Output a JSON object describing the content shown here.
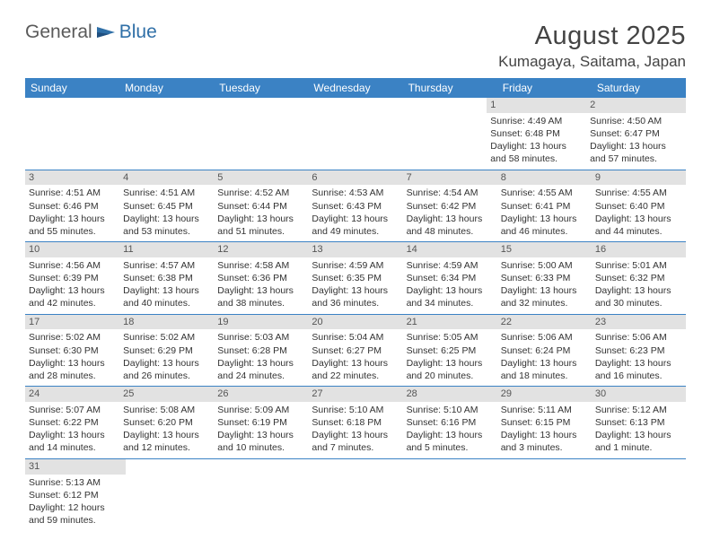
{
  "logo": {
    "text_a": "General",
    "text_b": "Blue"
  },
  "title": "August 2025",
  "location": "Kumagaya, Saitama, Japan",
  "colors": {
    "header_bg": "#3b82c4",
    "header_text": "#ffffff",
    "daynum_bg": "#e2e2e2",
    "daynum_text": "#555555",
    "body_text": "#333333",
    "logo_gray": "#5a5a5a",
    "logo_blue": "#2f6fa7",
    "row_border": "#3b82c4"
  },
  "weekdays": [
    "Sunday",
    "Monday",
    "Tuesday",
    "Wednesday",
    "Thursday",
    "Friday",
    "Saturday"
  ],
  "weeks": [
    [
      null,
      null,
      null,
      null,
      null,
      {
        "n": "1",
        "sr": "Sunrise: 4:49 AM",
        "ss": "Sunset: 6:48 PM",
        "d1": "Daylight: 13 hours",
        "d2": "and 58 minutes."
      },
      {
        "n": "2",
        "sr": "Sunrise: 4:50 AM",
        "ss": "Sunset: 6:47 PM",
        "d1": "Daylight: 13 hours",
        "d2": "and 57 minutes."
      }
    ],
    [
      {
        "n": "3",
        "sr": "Sunrise: 4:51 AM",
        "ss": "Sunset: 6:46 PM",
        "d1": "Daylight: 13 hours",
        "d2": "and 55 minutes."
      },
      {
        "n": "4",
        "sr": "Sunrise: 4:51 AM",
        "ss": "Sunset: 6:45 PM",
        "d1": "Daylight: 13 hours",
        "d2": "and 53 minutes."
      },
      {
        "n": "5",
        "sr": "Sunrise: 4:52 AM",
        "ss": "Sunset: 6:44 PM",
        "d1": "Daylight: 13 hours",
        "d2": "and 51 minutes."
      },
      {
        "n": "6",
        "sr": "Sunrise: 4:53 AM",
        "ss": "Sunset: 6:43 PM",
        "d1": "Daylight: 13 hours",
        "d2": "and 49 minutes."
      },
      {
        "n": "7",
        "sr": "Sunrise: 4:54 AM",
        "ss": "Sunset: 6:42 PM",
        "d1": "Daylight: 13 hours",
        "d2": "and 48 minutes."
      },
      {
        "n": "8",
        "sr": "Sunrise: 4:55 AM",
        "ss": "Sunset: 6:41 PM",
        "d1": "Daylight: 13 hours",
        "d2": "and 46 minutes."
      },
      {
        "n": "9",
        "sr": "Sunrise: 4:55 AM",
        "ss": "Sunset: 6:40 PM",
        "d1": "Daylight: 13 hours",
        "d2": "and 44 minutes."
      }
    ],
    [
      {
        "n": "10",
        "sr": "Sunrise: 4:56 AM",
        "ss": "Sunset: 6:39 PM",
        "d1": "Daylight: 13 hours",
        "d2": "and 42 minutes."
      },
      {
        "n": "11",
        "sr": "Sunrise: 4:57 AM",
        "ss": "Sunset: 6:38 PM",
        "d1": "Daylight: 13 hours",
        "d2": "and 40 minutes."
      },
      {
        "n": "12",
        "sr": "Sunrise: 4:58 AM",
        "ss": "Sunset: 6:36 PM",
        "d1": "Daylight: 13 hours",
        "d2": "and 38 minutes."
      },
      {
        "n": "13",
        "sr": "Sunrise: 4:59 AM",
        "ss": "Sunset: 6:35 PM",
        "d1": "Daylight: 13 hours",
        "d2": "and 36 minutes."
      },
      {
        "n": "14",
        "sr": "Sunrise: 4:59 AM",
        "ss": "Sunset: 6:34 PM",
        "d1": "Daylight: 13 hours",
        "d2": "and 34 minutes."
      },
      {
        "n": "15",
        "sr": "Sunrise: 5:00 AM",
        "ss": "Sunset: 6:33 PM",
        "d1": "Daylight: 13 hours",
        "d2": "and 32 minutes."
      },
      {
        "n": "16",
        "sr": "Sunrise: 5:01 AM",
        "ss": "Sunset: 6:32 PM",
        "d1": "Daylight: 13 hours",
        "d2": "and 30 minutes."
      }
    ],
    [
      {
        "n": "17",
        "sr": "Sunrise: 5:02 AM",
        "ss": "Sunset: 6:30 PM",
        "d1": "Daylight: 13 hours",
        "d2": "and 28 minutes."
      },
      {
        "n": "18",
        "sr": "Sunrise: 5:02 AM",
        "ss": "Sunset: 6:29 PM",
        "d1": "Daylight: 13 hours",
        "d2": "and 26 minutes."
      },
      {
        "n": "19",
        "sr": "Sunrise: 5:03 AM",
        "ss": "Sunset: 6:28 PM",
        "d1": "Daylight: 13 hours",
        "d2": "and 24 minutes."
      },
      {
        "n": "20",
        "sr": "Sunrise: 5:04 AM",
        "ss": "Sunset: 6:27 PM",
        "d1": "Daylight: 13 hours",
        "d2": "and 22 minutes."
      },
      {
        "n": "21",
        "sr": "Sunrise: 5:05 AM",
        "ss": "Sunset: 6:25 PM",
        "d1": "Daylight: 13 hours",
        "d2": "and 20 minutes."
      },
      {
        "n": "22",
        "sr": "Sunrise: 5:06 AM",
        "ss": "Sunset: 6:24 PM",
        "d1": "Daylight: 13 hours",
        "d2": "and 18 minutes."
      },
      {
        "n": "23",
        "sr": "Sunrise: 5:06 AM",
        "ss": "Sunset: 6:23 PM",
        "d1": "Daylight: 13 hours",
        "d2": "and 16 minutes."
      }
    ],
    [
      {
        "n": "24",
        "sr": "Sunrise: 5:07 AM",
        "ss": "Sunset: 6:22 PM",
        "d1": "Daylight: 13 hours",
        "d2": "and 14 minutes."
      },
      {
        "n": "25",
        "sr": "Sunrise: 5:08 AM",
        "ss": "Sunset: 6:20 PM",
        "d1": "Daylight: 13 hours",
        "d2": "and 12 minutes."
      },
      {
        "n": "26",
        "sr": "Sunrise: 5:09 AM",
        "ss": "Sunset: 6:19 PM",
        "d1": "Daylight: 13 hours",
        "d2": "and 10 minutes."
      },
      {
        "n": "27",
        "sr": "Sunrise: 5:10 AM",
        "ss": "Sunset: 6:18 PM",
        "d1": "Daylight: 13 hours",
        "d2": "and 7 minutes."
      },
      {
        "n": "28",
        "sr": "Sunrise: 5:10 AM",
        "ss": "Sunset: 6:16 PM",
        "d1": "Daylight: 13 hours",
        "d2": "and 5 minutes."
      },
      {
        "n": "29",
        "sr": "Sunrise: 5:11 AM",
        "ss": "Sunset: 6:15 PM",
        "d1": "Daylight: 13 hours",
        "d2": "and 3 minutes."
      },
      {
        "n": "30",
        "sr": "Sunrise: 5:12 AM",
        "ss": "Sunset: 6:13 PM",
        "d1": "Daylight: 13 hours",
        "d2": "and 1 minute."
      }
    ],
    [
      {
        "n": "31",
        "sr": "Sunrise: 5:13 AM",
        "ss": "Sunset: 6:12 PM",
        "d1": "Daylight: 12 hours",
        "d2": "and 59 minutes."
      },
      null,
      null,
      null,
      null,
      null,
      null
    ]
  ]
}
